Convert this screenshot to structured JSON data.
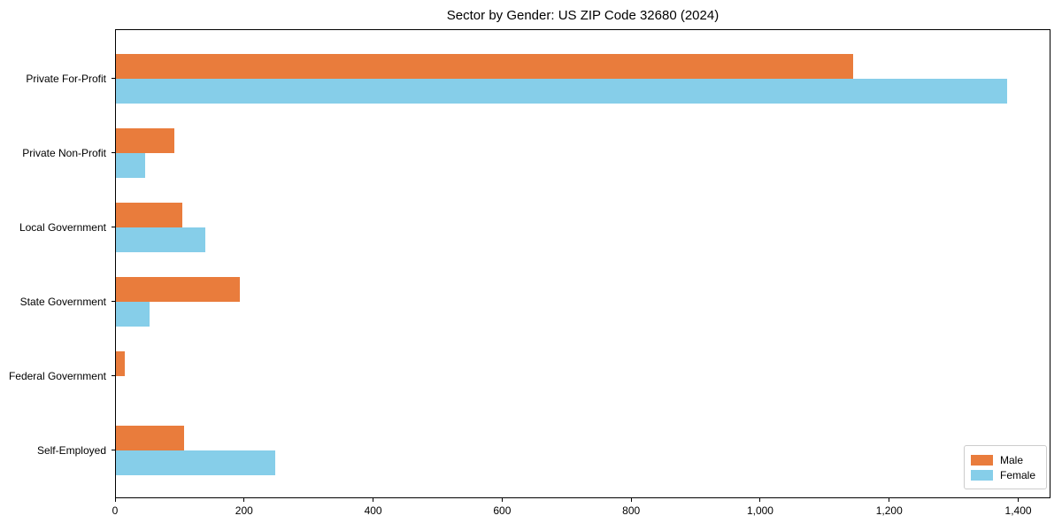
{
  "chart_data": {
    "type": "bar",
    "orientation": "horizontal",
    "title": "Sector by Gender: US ZIP Code 32680 (2024)",
    "categories": [
      "Private For-Profit",
      "Private Non-Profit",
      "Local Government",
      "State Government",
      "Federal Government",
      "Self-Employed"
    ],
    "series": [
      {
        "name": "Male",
        "color": "#E97C3C",
        "values": [
          1143,
          90,
          103,
          192,
          14,
          105
        ]
      },
      {
        "name": "Female",
        "color": "#86CEE9",
        "values": [
          1381,
          45,
          139,
          52,
          0,
          247
        ]
      }
    ],
    "xlabel": "",
    "ylabel": "",
    "xlim": [
      0,
      1450
    ],
    "xticks": [
      0,
      200,
      400,
      600,
      800,
      1000,
      1200,
      1400
    ],
    "xtick_labels": [
      "0",
      "200",
      "400",
      "600",
      "800",
      "1,000",
      "1,200",
      "1,400"
    ],
    "grid": false,
    "legend_position": "lower right",
    "background_color": "#ffffff",
    "axis_color": "#000000"
  }
}
